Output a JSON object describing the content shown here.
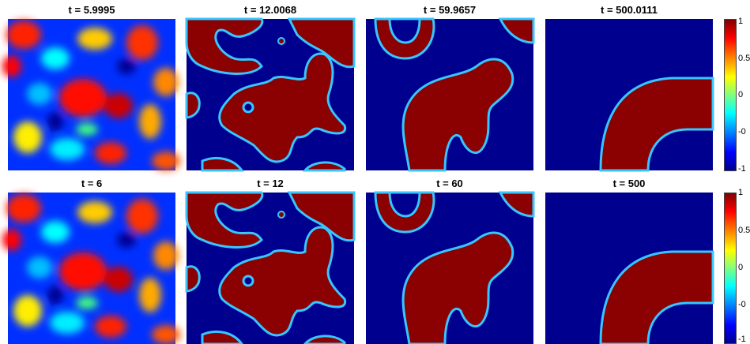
{
  "rows": [
    {
      "titles": [
        "t = 5.9995",
        "t = 12.0068",
        "t = 59.9657",
        "t = 500.0111"
      ]
    },
    {
      "titles": [
        "t = 6",
        "t = 12",
        "t = 60",
        "t = 500"
      ]
    }
  ],
  "colorbar": {
    "tick_labels": [
      "1",
      "0.5",
      "0",
      "-0",
      "-1"
    ]
  },
  "colors": {
    "deep_blue": "#00008f",
    "dark_red": "#8b0000",
    "interface": "#37c6ff"
  }
}
